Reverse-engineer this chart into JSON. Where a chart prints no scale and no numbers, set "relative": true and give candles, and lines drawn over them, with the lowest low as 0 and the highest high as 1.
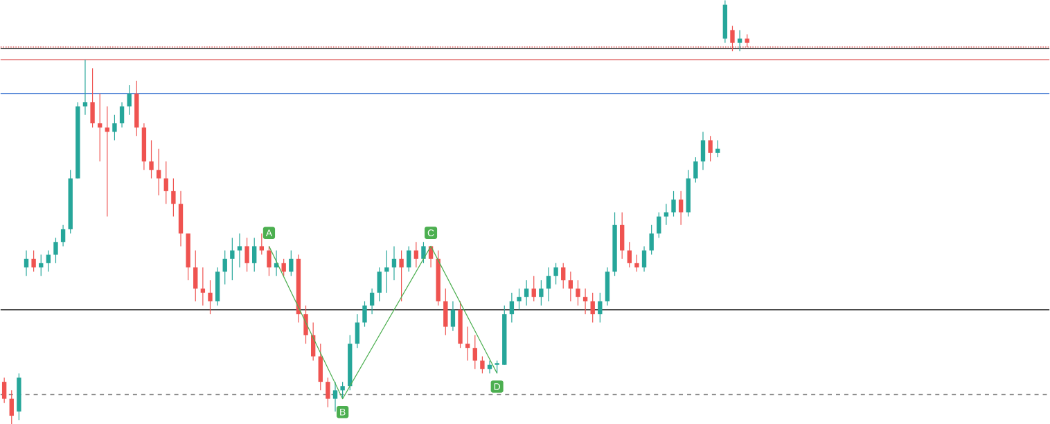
{
  "chart_data": {
    "type": "candlestick",
    "relative": true,
    "categories": [
      null,
      null,
      null,
      null,
      null,
      null,
      null,
      null,
      null,
      null,
      null,
      null,
      null,
      null,
      null,
      null,
      null,
      null,
      null,
      null,
      null,
      null,
      null,
      null,
      null,
      null,
      null,
      null,
      null,
      null,
      null,
      null,
      null,
      null,
      null,
      null,
      null,
      null,
      null,
      null,
      null,
      null,
      null,
      null,
      null,
      null,
      null,
      null,
      null,
      null,
      null,
      null,
      null,
      null,
      null,
      null,
      null,
      null,
      null,
      null,
      null,
      null,
      null,
      null,
      null,
      null,
      null,
      null,
      null,
      null,
      null,
      null,
      null,
      null,
      null,
      null,
      null,
      null,
      null,
      null,
      null,
      null,
      null,
      null,
      null,
      null,
      null,
      null,
      null,
      null,
      null,
      null,
      null,
      null,
      null,
      null,
      null,
      null,
      null,
      null,
      null,
      null
    ],
    "colors": [
      "#ef5350",
      "#ef5350",
      "#26a69a",
      "#26a69a",
      "#ef5350",
      "#26a69a",
      "#26a69a",
      "#26a69a",
      "#26a69a",
      "#26a69a",
      "#26a69a",
      "#26a69a",
      "#ef5350",
      "#ef5350",
      "#ef5350",
      "#26a69a",
      "#26a69a",
      "#26a69a",
      "#ef5350",
      "#ef5350",
      "#ef5350",
      "#ef5350",
      "#ef5350",
      "#ef5350",
      "#ef5350",
      "#ef5350",
      "#ef5350",
      "#ef5350",
      "#ef5350",
      "#26a69a",
      "#26a69a",
      "#26a69a",
      "#26a69a",
      "#ef5350",
      "#26a69a",
      "#ef5350",
      "#ef5350",
      "#26a69a",
      "#ef5350",
      "#26a69a",
      "#ef5350",
      "#ef5350",
      "#ef5350",
      "#ef5350",
      "#ef5350",
      "#26a69a",
      "#26a69a",
      "#26a69a",
      "#26a69a",
      "#26a69a",
      "#26a69a",
      "#26a69a",
      "#26a69a",
      "#26a69a",
      "#ef5350",
      "#26a69a",
      "#ef5350",
      "#26a69a",
      "#ef5350",
      "#ef5350",
      "#ef5350",
      "#26a69a",
      "#ef5350",
      "#ef5350",
      "#ef5350",
      "#ef5350",
      "#26a69a",
      "#26a69a",
      "#26a69a",
      "#26a69a",
      "#26a69a",
      "#26a69a",
      "#ef5350",
      "#26a69a",
      "#26a69a",
      "#26a69a",
      "#ef5350",
      "#ef5350",
      "#ef5350",
      "#ef5350",
      "#ef5350",
      "#26a69a",
      "#26a69a",
      "#26a69a",
      "#ef5350",
      "#ef5350",
      "#ef5350",
      "#26a69a",
      "#26a69a",
      "#26a69a",
      "#26a69a",
      "#26a69a",
      "#ef5350",
      "#26a69a",
      "#26a69a",
      "#26a69a",
      "#ef5350",
      "#26a69a",
      "#26a69a",
      "#ef5350",
      "#26a69a",
      "#ef5350"
    ],
    "ohlc": [
      [
        0.1,
        0.11,
        0.05,
        0.06
      ],
      [
        0.06,
        0.08,
        0.0,
        0.02
      ],
      [
        0.03,
        0.12,
        0.01,
        0.11
      ],
      [
        0.37,
        0.41,
        0.35,
        0.39
      ],
      [
        0.39,
        0.41,
        0.36,
        0.37
      ],
      [
        0.37,
        0.4,
        0.35,
        0.38
      ],
      [
        0.38,
        0.41,
        0.36,
        0.4
      ],
      [
        0.4,
        0.44,
        0.38,
        0.43
      ],
      [
        0.43,
        0.47,
        0.42,
        0.46
      ],
      [
        0.46,
        0.6,
        0.45,
        0.58
      ],
      [
        0.58,
        0.76,
        0.58,
        0.75
      ],
      [
        0.75,
        0.86,
        0.73,
        0.76
      ],
      [
        0.76,
        0.84,
        0.7,
        0.71
      ],
      [
        0.71,
        0.78,
        0.62,
        0.7
      ],
      [
        0.7,
        0.75,
        0.49,
        0.69
      ],
      [
        0.69,
        0.73,
        0.67,
        0.71
      ],
      [
        0.71,
        0.76,
        0.7,
        0.75
      ],
      [
        0.75,
        0.8,
        0.73,
        0.78
      ],
      [
        0.78,
        0.81,
        0.68,
        0.7
      ],
      [
        0.7,
        0.71,
        0.6,
        0.62
      ],
      [
        0.62,
        0.67,
        0.58,
        0.6
      ],
      [
        0.6,
        0.65,
        0.54,
        0.58
      ],
      [
        0.58,
        0.62,
        0.52,
        0.55
      ],
      [
        0.55,
        0.58,
        0.49,
        0.52
      ],
      [
        0.52,
        0.55,
        0.42,
        0.45
      ],
      [
        0.45,
        0.45,
        0.34,
        0.37
      ],
      [
        0.37,
        0.41,
        0.29,
        0.32
      ],
      [
        0.32,
        0.37,
        0.28,
        0.31
      ],
      [
        0.31,
        0.34,
        0.26,
        0.29
      ],
      [
        0.29,
        0.37,
        0.28,
        0.36
      ],
      [
        0.36,
        0.41,
        0.33,
        0.39
      ],
      [
        0.39,
        0.44,
        0.34,
        0.41
      ],
      [
        0.41,
        0.45,
        0.37,
        0.42
      ],
      [
        0.42,
        0.44,
        0.36,
        0.38
      ],
      [
        0.38,
        0.44,
        0.36,
        0.42
      ],
      [
        0.42,
        0.45,
        0.4,
        0.41
      ],
      [
        0.41,
        0.42,
        0.35,
        0.37
      ],
      [
        0.37,
        0.41,
        0.35,
        0.38
      ],
      [
        0.38,
        0.39,
        0.35,
        0.36
      ],
      [
        0.36,
        0.41,
        0.35,
        0.39
      ],
      [
        0.39,
        0.4,
        0.24,
        0.26
      ],
      [
        0.26,
        0.28,
        0.19,
        0.21
      ],
      [
        0.21,
        0.24,
        0.15,
        0.16
      ],
      [
        0.16,
        0.19,
        0.08,
        0.1
      ],
      [
        0.1,
        0.11,
        0.04,
        0.06
      ],
      [
        0.06,
        0.1,
        0.03,
        0.08
      ],
      [
        0.08,
        0.1,
        0.06,
        0.09
      ],
      [
        0.09,
        0.21,
        0.08,
        0.19
      ],
      [
        0.19,
        0.26,
        0.18,
        0.24
      ],
      [
        0.24,
        0.29,
        0.23,
        0.28
      ],
      [
        0.28,
        0.32,
        0.26,
        0.31
      ],
      [
        0.31,
        0.37,
        0.29,
        0.36
      ],
      [
        0.36,
        0.41,
        0.31,
        0.37
      ],
      [
        0.37,
        0.42,
        0.34,
        0.39
      ],
      [
        0.39,
        0.41,
        0.29,
        0.37
      ],
      [
        0.37,
        0.42,
        0.36,
        0.41
      ],
      [
        0.41,
        0.43,
        0.37,
        0.39
      ],
      [
        0.39,
        0.43,
        0.38,
        0.42
      ],
      [
        0.42,
        0.42,
        0.37,
        0.39
      ],
      [
        0.39,
        0.41,
        0.28,
        0.29
      ],
      [
        0.29,
        0.32,
        0.21,
        0.23
      ],
      [
        0.23,
        0.29,
        0.22,
        0.27
      ],
      [
        0.27,
        0.29,
        0.18,
        0.19
      ],
      [
        0.19,
        0.23,
        0.15,
        0.18
      ],
      [
        0.18,
        0.21,
        0.13,
        0.15
      ],
      [
        0.15,
        0.16,
        0.12,
        0.13
      ],
      [
        0.13,
        0.15,
        0.12,
        0.14
      ],
      [
        0.14,
        0.15,
        0.12,
        0.14
      ],
      [
        0.14,
        0.28,
        0.14,
        0.26
      ],
      [
        0.26,
        0.31,
        0.24,
        0.29
      ],
      [
        0.29,
        0.32,
        0.27,
        0.3
      ],
      [
        0.3,
        0.34,
        0.28,
        0.32
      ],
      [
        0.32,
        0.35,
        0.29,
        0.3
      ],
      [
        0.3,
        0.34,
        0.28,
        0.32
      ],
      [
        0.32,
        0.37,
        0.29,
        0.35
      ],
      [
        0.35,
        0.38,
        0.33,
        0.37
      ],
      [
        0.37,
        0.38,
        0.32,
        0.34
      ],
      [
        0.34,
        0.36,
        0.29,
        0.32
      ],
      [
        0.32,
        0.34,
        0.28,
        0.3
      ],
      [
        0.3,
        0.32,
        0.26,
        0.29
      ],
      [
        0.29,
        0.31,
        0.24,
        0.26
      ],
      [
        0.26,
        0.31,
        0.24,
        0.29
      ],
      [
        0.29,
        0.37,
        0.28,
        0.36
      ],
      [
        0.36,
        0.5,
        0.35,
        0.47
      ],
      [
        0.47,
        0.5,
        0.39,
        0.41
      ],
      [
        0.41,
        0.43,
        0.37,
        0.38
      ],
      [
        0.38,
        0.4,
        0.36,
        0.37
      ],
      [
        0.37,
        0.42,
        0.36,
        0.41
      ],
      [
        0.41,
        0.47,
        0.4,
        0.45
      ],
      [
        0.45,
        0.5,
        0.44,
        0.49
      ],
      [
        0.49,
        0.52,
        0.47,
        0.5
      ],
      [
        0.5,
        0.55,
        0.49,
        0.53
      ],
      [
        0.53,
        0.55,
        0.47,
        0.5
      ],
      [
        0.5,
        0.6,
        0.49,
        0.58
      ],
      [
        0.58,
        0.63,
        0.57,
        0.62
      ],
      [
        0.62,
        0.69,
        0.6,
        0.67
      ],
      [
        0.67,
        0.68,
        0.62,
        0.64
      ],
      [
        0.64,
        0.67,
        0.63,
        0.65
      ],
      [
        0.91,
        1.0,
        0.9,
        0.99
      ],
      [
        0.93,
        0.94,
        0.88,
        0.9
      ],
      [
        0.9,
        0.93,
        0.88,
        0.91
      ],
      [
        0.91,
        0.92,
        0.89,
        0.9
      ]
    ],
    "annotations": [
      "A",
      "B",
      "C",
      "D"
    ],
    "ref_lines": [
      {
        "axis": "y",
        "value": 0.89,
        "color": "#e57373",
        "line_style": "dotted"
      },
      {
        "axis": "y",
        "value": 0.886,
        "color": "#222222",
        "line_style": "solid"
      },
      {
        "axis": "y",
        "value": 0.86,
        "color": "#e06666",
        "line_style": "solid"
      },
      {
        "axis": "y",
        "value": 0.78,
        "color": "#4a7fd4",
        "line_style": "solid"
      },
      {
        "axis": "y",
        "value": 0.27,
        "color": "#222222",
        "line_style": "solid"
      },
      {
        "axis": "y",
        "value": 0.07,
        "color": "#888888",
        "line_style": "dashed"
      }
    ]
  }
}
